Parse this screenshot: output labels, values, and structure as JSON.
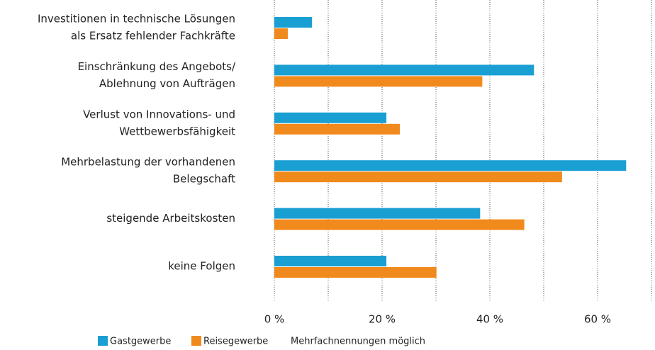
{
  "chart_data": {
    "type": "hbar",
    "categories": [
      [
        "Investitionen in technische Lösungen",
        "als Ersatz fehlender Fachkräfte"
      ],
      [
        "Einschränkung des Angebots/",
        "Ablehnung von Aufträgen"
      ],
      [
        "Verlust von Innovations- und",
        "Wettbewerbsfähigkeit"
      ],
      [
        "Mehrbelastung der vorhandenen",
        "Belegschaft"
      ],
      [
        "steigende Arbeitskosten"
      ],
      [
        "keine Folgen"
      ]
    ],
    "series": [
      {
        "name": "Gastgewerbe",
        "color": "#1a9fd3",
        "values": [
          7.0,
          48.2,
          20.8,
          65.3,
          38.2,
          20.8
        ]
      },
      {
        "name": "Reisegewerbe",
        "color": "#f18a1d",
        "values": [
          2.5,
          38.6,
          23.3,
          53.4,
          46.4,
          30.1
        ]
      }
    ],
    "note": "Mehrfachnennungen möglich",
    "xlim": [
      0,
      70
    ],
    "xticks": [
      {
        "value": 0,
        "label": "0 %"
      },
      {
        "value": 20,
        "label": "20 %"
      },
      {
        "value": 40,
        "label": "40 %"
      },
      {
        "value": 60,
        "label": "60 %"
      }
    ],
    "xgrid": [
      0,
      10,
      20,
      30,
      40,
      50,
      60,
      70
    ],
    "grid": true
  }
}
